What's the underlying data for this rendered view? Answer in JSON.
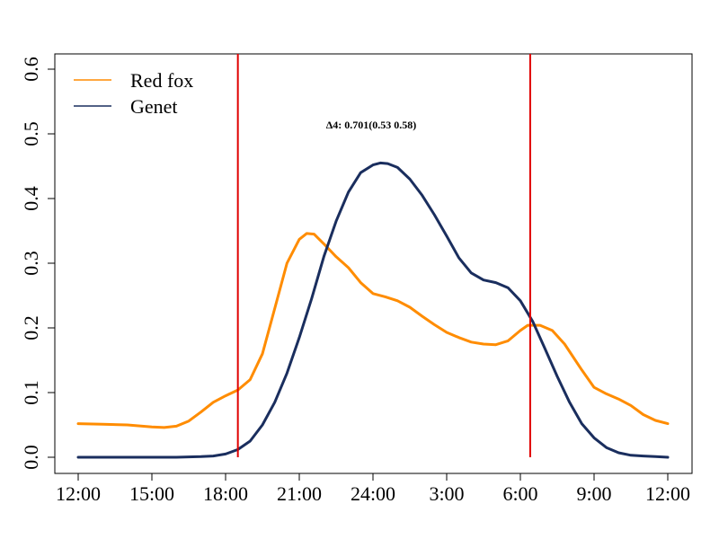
{
  "chart_data": {
    "type": "line",
    "title": "",
    "xlabel": "",
    "ylabel": "",
    "x_tick_labels": [
      "12:00",
      "15:00",
      "18:00",
      "21:00",
      "24:00",
      "3:00",
      "6:00",
      "9:00",
      "12:00"
    ],
    "x_tick_hours": [
      12,
      15,
      18,
      21,
      24,
      27,
      30,
      33,
      36
    ],
    "xlim": [
      12,
      36
    ],
    "ylim": [
      0,
      0.6
    ],
    "y_ticks": [
      "0.0",
      "0.1",
      "0.2",
      "0.3",
      "0.4",
      "0.5",
      "0.6"
    ],
    "legend_position": "top-left",
    "grid": false,
    "annotation": "Δ4: 0.701(0.53 0.58)",
    "vlines": [
      {
        "x": 18.5,
        "color": "#e00000"
      },
      {
        "x": 30.4,
        "color": "#e00000"
      }
    ],
    "series": [
      {
        "name": "Red fox",
        "color": "#ff8c00",
        "x": [
          12,
          13,
          14,
          15,
          15.5,
          16,
          16.5,
          17,
          17.5,
          18,
          18.5,
          19,
          19.5,
          20,
          20.5,
          21,
          21.3,
          21.6,
          22,
          22.5,
          23,
          23.5,
          24,
          24.5,
          25,
          25.5,
          26,
          26.5,
          27,
          27.5,
          28,
          28.5,
          29,
          29.5,
          30,
          30.3,
          30.8,
          31.3,
          31.8,
          32.5,
          33,
          33.5,
          34,
          34.5,
          35,
          35.5,
          36
        ],
        "values": [
          0.052,
          0.051,
          0.05,
          0.047,
          0.046,
          0.048,
          0.056,
          0.07,
          0.085,
          0.095,
          0.104,
          0.12,
          0.16,
          0.23,
          0.3,
          0.337,
          0.346,
          0.345,
          0.33,
          0.31,
          0.293,
          0.27,
          0.253,
          0.248,
          0.242,
          0.232,
          0.218,
          0.205,
          0.193,
          0.185,
          0.178,
          0.175,
          0.174,
          0.18,
          0.196,
          0.204,
          0.204,
          0.196,
          0.175,
          0.135,
          0.108,
          0.098,
          0.09,
          0.08,
          0.066,
          0.057,
          0.052
        ]
      },
      {
        "name": "Genet",
        "color": "#1a2e5e",
        "x": [
          12,
          13,
          14,
          15,
          16,
          17,
          17.5,
          18,
          18.5,
          19,
          19.5,
          20,
          20.5,
          21,
          21.5,
          22,
          22.5,
          23,
          23.5,
          24,
          24.3,
          24.6,
          25,
          25.5,
          26,
          26.5,
          27,
          27.5,
          28,
          28.5,
          29,
          29.5,
          30,
          30.5,
          31,
          31.5,
          32,
          32.5,
          33,
          33.5,
          34,
          34.5,
          35,
          35.5,
          36
        ],
        "values": [
          0.0,
          0.0,
          0.0,
          0.0,
          0.0,
          0.001,
          0.002,
          0.005,
          0.012,
          0.025,
          0.05,
          0.085,
          0.13,
          0.185,
          0.245,
          0.31,
          0.365,
          0.41,
          0.44,
          0.452,
          0.455,
          0.454,
          0.448,
          0.43,
          0.405,
          0.375,
          0.342,
          0.308,
          0.285,
          0.274,
          0.27,
          0.262,
          0.242,
          0.21,
          0.168,
          0.125,
          0.085,
          0.052,
          0.03,
          0.015,
          0.007,
          0.003,
          0.002,
          0.001,
          0.0
        ]
      }
    ]
  }
}
